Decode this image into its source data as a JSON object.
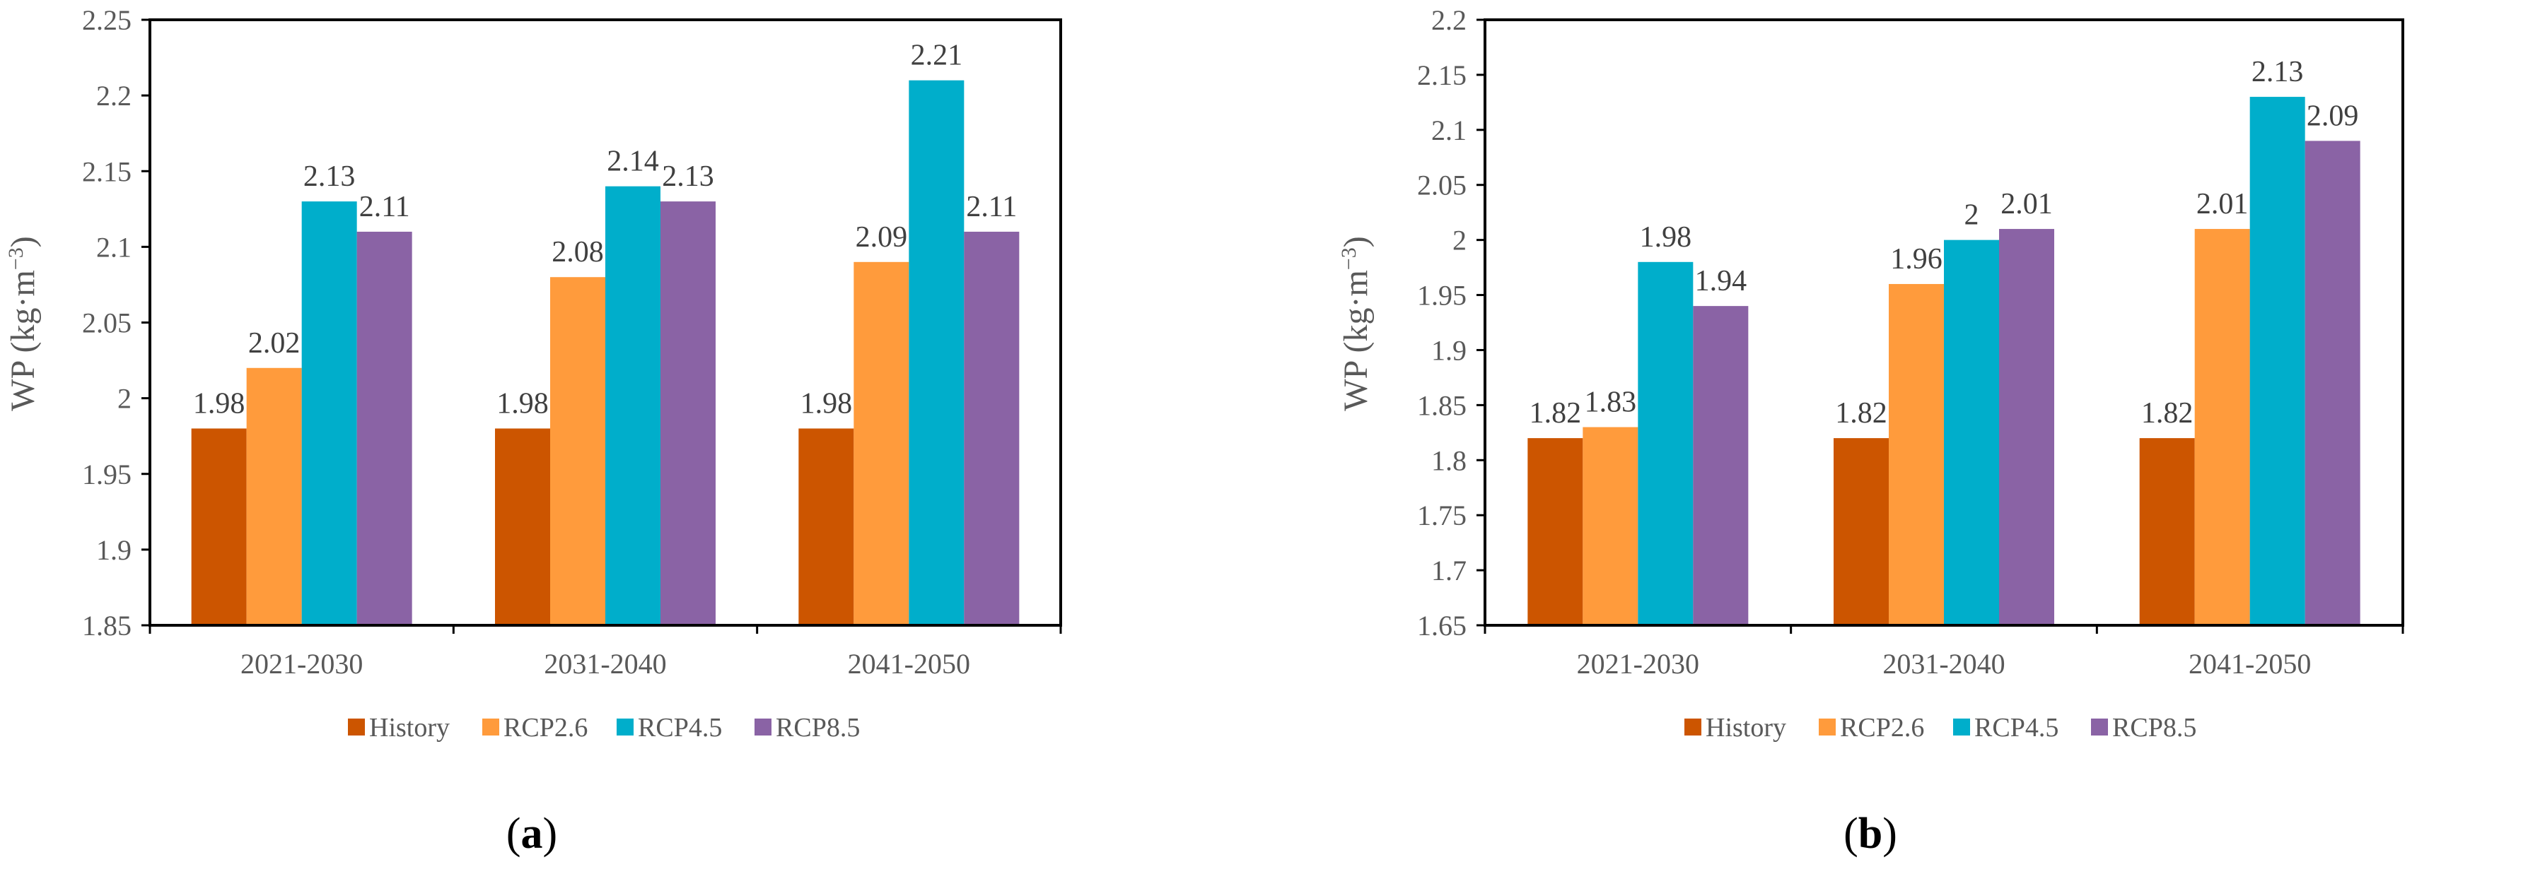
{
  "colors": {
    "History": "#CC5500",
    "RCP2.6": "#FF9B3C",
    "RCP4.5": "#00AECB",
    "RCP8.5": "#8A63A5"
  },
  "chart_data": [
    {
      "type": "bar",
      "panel_label": "(a)",
      "ylabel": "WP (kg·m",
      "ylabel_superscript": "−3",
      "ylabel_close": ")",
      "categories": [
        "2021-2030",
        "2031-2040",
        "2041-2050"
      ],
      "ylim": [
        1.85,
        2.25
      ],
      "ytick_labels": [
        "1.85",
        "1.9",
        "1.95",
        "2",
        "2.05",
        "2.1",
        "2.15",
        "2.2",
        "2.25"
      ],
      "legend_position": "bottom",
      "series": [
        {
          "name": "History",
          "values": [
            1.98,
            1.98,
            1.98
          ],
          "labels": [
            "1.98",
            "1.98",
            "1.98"
          ]
        },
        {
          "name": "RCP2.6",
          "values": [
            2.02,
            2.08,
            2.09
          ],
          "labels": [
            "2.02",
            "2.08",
            "2.09"
          ]
        },
        {
          "name": "RCP4.5",
          "values": [
            2.13,
            2.14,
            2.21
          ],
          "labels": [
            "2.13",
            "2.14",
            "2.21"
          ]
        },
        {
          "name": "RCP8.5",
          "values": [
            2.11,
            2.13,
            2.11
          ],
          "labels": [
            "2.11",
            "2.13",
            "2.11"
          ]
        }
      ]
    },
    {
      "type": "bar",
      "panel_label": "(b)",
      "ylabel": "WP (kg·m",
      "ylabel_superscript": "−3",
      "ylabel_close": ")",
      "categories": [
        "2021-2030",
        "2031-2040",
        "2041-2050"
      ],
      "ylim": [
        1.65,
        2.2
      ],
      "ytick_labels": [
        "1.65",
        "1.7",
        "1.75",
        "1.8",
        "1.85",
        "1.9",
        "1.95",
        "2",
        "2.05",
        "2.1",
        "2.15",
        "2.2"
      ],
      "legend_position": "bottom",
      "series": [
        {
          "name": "History",
          "values": [
            1.82,
            1.82,
            1.82
          ],
          "labels": [
            "1.82",
            "1.82",
            "1.82"
          ]
        },
        {
          "name": "RCP2.6",
          "values": [
            1.83,
            1.96,
            2.01
          ],
          "labels": [
            "1.83",
            "1.96",
            "2.01"
          ]
        },
        {
          "name": "RCP4.5",
          "values": [
            1.98,
            2.0,
            2.13
          ],
          "labels": [
            "1.98",
            "2",
            "2.13"
          ]
        },
        {
          "name": "RCP8.5",
          "values": [
            1.94,
            2.01,
            2.09
          ],
          "labels": [
            "1.94",
            "2.01",
            "2.09"
          ]
        }
      ]
    }
  ]
}
